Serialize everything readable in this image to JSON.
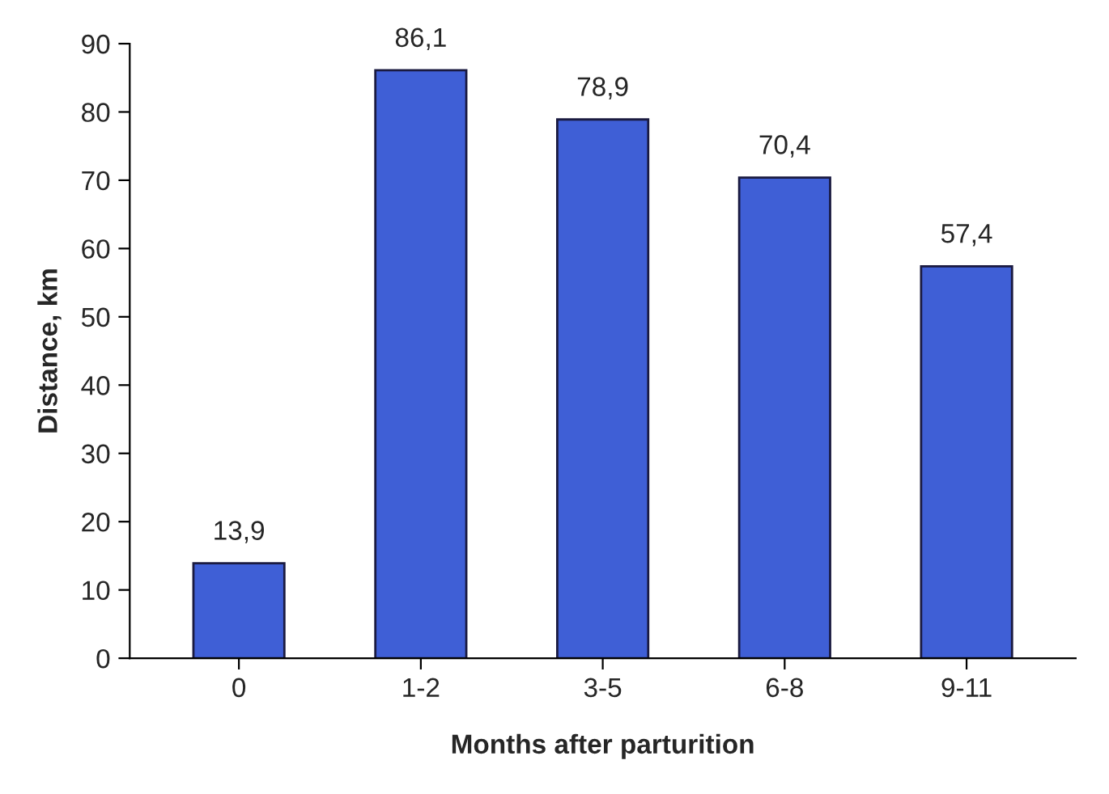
{
  "chart_data": {
    "type": "bar",
    "xlabel": "Months after parturition",
    "ylabel": "Distance, km",
    "categories": [
      "0",
      "1-2",
      "3-5",
      "6-8",
      "9-11"
    ],
    "values": [
      13.9,
      86.1,
      78.9,
      70.4,
      57.4
    ],
    "value_labels": [
      "13,9",
      "86,1",
      "78,9",
      "70,4",
      "57,4"
    ],
    "color": "#3f5fd6",
    "ylim": [
      0,
      90
    ],
    "yticks": [
      0,
      10,
      20,
      30,
      40,
      50,
      60,
      70,
      80,
      90
    ],
    "grid": false
  }
}
